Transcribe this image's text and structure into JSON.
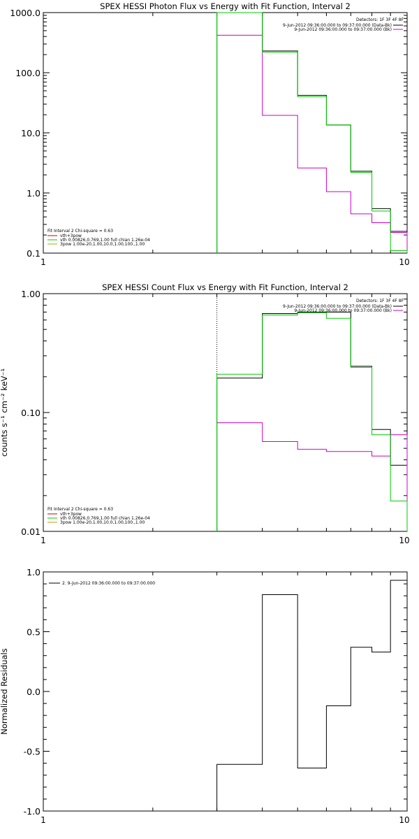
{
  "colors": {
    "observed": "#000000",
    "background": "#cc00cc",
    "model": "#00cc00",
    "fit_line": "#cc0000",
    "axis": "#000000"
  },
  "chart_data": [
    {
      "type": "line",
      "title": "SPEX HESSI Photon Flux vs Energy with Fit Function, Interval 2",
      "xlabel": "",
      "ylabel": "",
      "xscale": "log",
      "yscale": "log",
      "xlim": [
        1,
        10
      ],
      "ylim": [
        0.1,
        1000
      ],
      "xtick_labels": [
        "1",
        "10"
      ],
      "ytick_values": [
        0.1,
        1,
        10,
        100,
        1000
      ],
      "ytick_labels": [
        "0.1",
        "1.0",
        "10.0",
        "100.0",
        "1000.0"
      ],
      "bin_edges": [
        3,
        4,
        5,
        6,
        7,
        8,
        9,
        10
      ],
      "vline_x": 3,
      "series": [
        {
          "name": "9-Jun-2012 09:36:00.000 to 09:37:00.000 (Data-Bk)",
          "color": "#000000",
          "values": [
            1000,
            230,
            42,
            13.5,
            2.3,
            0.55,
            0.23
          ]
        },
        {
          "name": "9-Jun-2012 09:36:00.000 to 09:37:00.000 (Bk)",
          "color": "#cc00cc",
          "values": [
            420,
            19.5,
            2.6,
            1.05,
            0.45,
            0.32,
            0.22
          ]
        },
        {
          "name": "",
          "color": "#00cc00",
          "values": [
            1000,
            220,
            40,
            13.5,
            2.2,
            0.5,
            0.11
          ]
        }
      ],
      "legend_header": "Detectors: 1F 3F 4F 8F",
      "legend_lines": [
        {
          "text": "9-Jun-2012 09:36:00.000 to 09:37:00.000 (Data-Bk)",
          "color": "#000000"
        },
        {
          "text": "9-Jun-2012 09:36:00.000 to 09:37:00.000 (Bk)",
          "color": "#cc00cc"
        }
      ],
      "fit_header": "Fit Interval 2   Chi-square = 0.63",
      "fit_lines": [
        {
          "text": "vth+3pow",
          "color": "#cc0000"
        },
        {
          "text": "vth 0.00826,0.769,1.00  full chian 1.26e-04",
          "color": "#00cc00"
        },
        {
          "text": "3pow 1.00e-20,1.00,10.0,1.00,100.,1.00",
          "color": "#cc9900"
        }
      ]
    },
    {
      "type": "line",
      "title": "SPEX HESSI Count Flux vs Energy with Fit Function, Interval 2",
      "xlabel": "",
      "ylabel": "counts s⁻¹ cm⁻² keV⁻¹",
      "xscale": "log",
      "yscale": "log",
      "xlim": [
        1,
        10
      ],
      "ylim": [
        0.01,
        1.0
      ],
      "xtick_labels": [
        "1",
        "10"
      ],
      "ytick_values": [
        0.01,
        0.1,
        1.0
      ],
      "ytick_labels": [
        "0.01",
        "0.10",
        "1.00"
      ],
      "bin_edges": [
        3,
        4,
        5,
        6,
        7,
        8,
        9,
        10
      ],
      "vline_x": 3,
      "series": [
        {
          "name": "9-Jun-2012 09:36:00.000 to 09:37:00.000 (Data-Bk)",
          "color": "#000000",
          "values": [
            0.195,
            0.68,
            0.7,
            0.7,
            0.245,
            0.072,
            0.036
          ]
        },
        {
          "name": "9-Jun-2012 09:36:00.000 to 09:37:00.000 (Bk)",
          "color": "#cc00cc",
          "values": [
            0.082,
            0.057,
            0.049,
            0.047,
            0.047,
            0.043,
            0.065
          ]
        },
        {
          "name": "",
          "color": "#00cc00",
          "values": [
            0.21,
            0.66,
            0.69,
            0.62,
            0.24,
            0.065,
            0.018
          ]
        }
      ],
      "legend_header": "Detectors: 1F 3F 4F 8F",
      "legend_lines": [
        {
          "text": "9-Jun-2012 09:36:00.000 to 09:37:00.000 (Data-Bk)",
          "color": "#000000"
        },
        {
          "text": "9-Jun-2012 09:36:00.000 to 09:37:00.000 (Bk)",
          "color": "#cc00cc"
        }
      ],
      "fit_header": "Fit Interval 2   Chi-square = 0.63",
      "fit_lines": [
        {
          "text": "vth+3pow",
          "color": "#cc0000"
        },
        {
          "text": "vth 0.00826,0.769,1.00  full chian 1.26e-04",
          "color": "#00cc00"
        },
        {
          "text": "3pow 1.00e-20,1.00,10.0,1.00,100.,1.00",
          "color": "#cc9900"
        }
      ]
    },
    {
      "type": "line",
      "title": "",
      "xlabel": "",
      "ylabel": "Normalized Residuals",
      "xscale": "log",
      "yscale": "linear",
      "xlim": [
        1,
        10
      ],
      "ylim": [
        -1.0,
        1.0
      ],
      "xtick_labels": [
        "1",
        "10"
      ],
      "ytick_values": [
        -1.0,
        -0.5,
        0.0,
        0.5,
        1.0
      ],
      "ytick_labels": [
        "-1.0",
        "-0.5",
        "0.0",
        "0.5",
        "1.0"
      ],
      "bin_edges": [
        3,
        4,
        5,
        6,
        7,
        8,
        9,
        10
      ],
      "series": [
        {
          "name": "2.  9-Jun-2012 09:36:00.000 to 09:37:00.000",
          "color": "#000000",
          "values": [
            -0.61,
            0.81,
            -0.64,
            -0.12,
            0.37,
            0.33,
            0.93
          ]
        }
      ],
      "legend_lines": [
        {
          "text": "2.  9-Jun-2012 09:36:00.000 to 09:37:00.000",
          "color": "#000000"
        }
      ]
    }
  ]
}
